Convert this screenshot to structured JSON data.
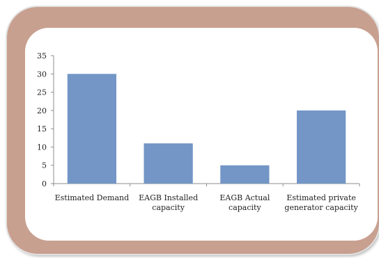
{
  "chart_data": {
    "type": "bar",
    "categories": [
      [
        "Estimated Demand"
      ],
      [
        "EAGB Installed",
        "capacity"
      ],
      [
        "EAGB Actual",
        "capacity"
      ],
      [
        "Estimated private",
        "generator capacity"
      ]
    ],
    "values": [
      30,
      11,
      5,
      20
    ],
    "ylim": [
      0,
      35
    ],
    "yticks": [
      0,
      5,
      10,
      15,
      20,
      25,
      30,
      35
    ],
    "grid": false,
    "legend": false,
    "bar_color": "#7396c6"
  },
  "colors": {
    "frame": "#c8a090",
    "panel": "#ffffff",
    "axis": "#8c8c8c"
  }
}
